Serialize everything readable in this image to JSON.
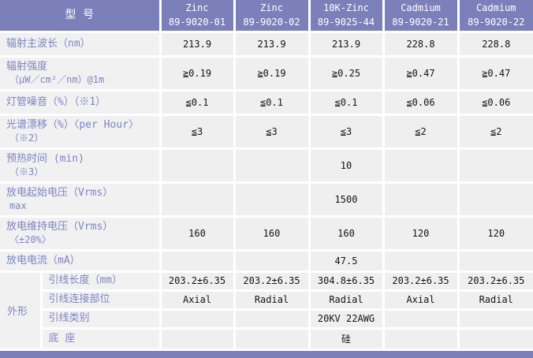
{
  "colors": {
    "header_bg": "#7b80bb",
    "header_text": "#ffffff",
    "label_text": "#7e84c0",
    "value_text": "#141414",
    "cell_bg": "#efefef",
    "label_bg": "#f1f1f2",
    "gridline": "#ffffff",
    "footer_bar": "#7b80bb"
  },
  "header": {
    "corner": "型 号",
    "columns": [
      {
        "line1": "Zinc",
        "line2": "89-9020-01"
      },
      {
        "line1": "Zinc",
        "line2": "89-9020-02"
      },
      {
        "line1": "10K-Zinc",
        "line2": "89-9025-44"
      },
      {
        "line1": "Cadmium",
        "line2": "89-9020-21"
      },
      {
        "line1": "Cadmium",
        "line2": "89-9020-22"
      }
    ]
  },
  "rows": [
    {
      "label": "辐射主波长（nm）",
      "label2": "",
      "values": [
        "213.9",
        "213.9",
        "213.9",
        "228.8",
        "228.8"
      ]
    },
    {
      "label": "辐射强度",
      "label2": "（μW／cm²／nm）@1m",
      "values": [
        "≧0.19",
        "≧0.19",
        "≧0.25",
        "≧0.47",
        "≧0.47"
      ]
    },
    {
      "label": "灯管噪音（%）（※1）",
      "label2": "",
      "values": [
        "≦0.1",
        "≦0.1",
        "≦0.1",
        "≦0.06",
        "≦0.06"
      ]
    },
    {
      "label": "光谱漂移（%）〈per Hour〉",
      "label2": "（※2）",
      "values": [
        "≦3",
        "≦3",
        "≦3",
        "≦2",
        "≦2"
      ]
    },
    {
      "label": "预热时间 (min)",
      "label2": "（※3）",
      "values": [
        "",
        "",
        "10",
        "",
        ""
      ]
    },
    {
      "label": "放电起始电压（Vrms）",
      "label2": "max",
      "values": [
        "",
        "",
        "1500",
        "",
        ""
      ]
    },
    {
      "label": "放电维持电压（Vrms）",
      "label2": "〈±20%〉",
      "values": [
        "160",
        "160",
        "160",
        "120",
        "120"
      ]
    },
    {
      "label": "放电电流（mA）",
      "label2": "",
      "values": [
        "",
        "",
        "47.5",
        "",
        ""
      ]
    }
  ],
  "group": {
    "label": "外形",
    "rows": [
      {
        "label": "引线长度（mm）",
        "values": [
          "203.2±6.35",
          "203.2±6.35",
          "304.8±6.35",
          "203.2±6.35",
          "203.2±6.35"
        ]
      },
      {
        "label": "引线连接部位",
        "values": [
          "Axial",
          "Radial",
          "Radial",
          "Axial",
          "Radial"
        ]
      },
      {
        "label": "引线类别",
        "values": [
          "",
          "",
          "20KV 22AWG",
          "",
          ""
        ]
      },
      {
        "label": "底 座",
        "values": [
          "",
          "",
          "硅",
          "",
          ""
        ]
      }
    ]
  }
}
